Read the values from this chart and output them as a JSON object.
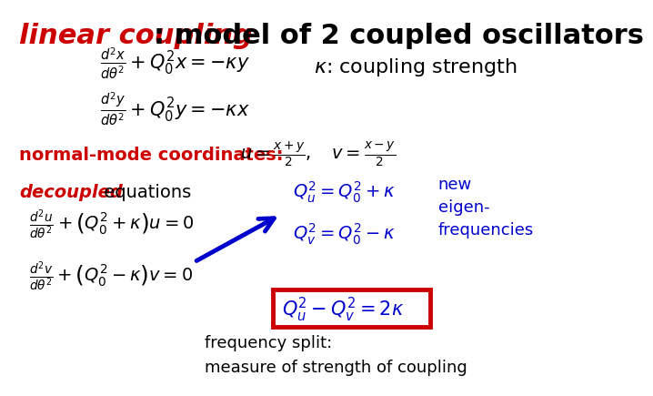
{
  "title_italic": "linear coupling",
  "title_rest": ": model of 2 coupled oscillators",
  "title_color_italic": "#cc0000",
  "title_color_rest": "#000000",
  "title_fontsize": 22,
  "bg_color": "#ffffff",
  "eq1": "$\\frac{d^2x}{d\\theta^2} + Q_0^2 x = -\\kappa y$",
  "eq2": "$\\frac{d^2y}{d\\theta^2} + Q_0^2 y = -\\kappa x$",
  "kappa_label": "$\\kappa$: coupling strength",
  "normal_mode_label": "normal-mode coordinates:",
  "normal_mode_eq": "$u = \\frac{x+y}{2},\\quad v = \\frac{x-y}{2}$",
  "decoupled_label_italic": "decoupled",
  "decoupled_label_rest": " equations",
  "decoupled_color": "#cc0000",
  "eq_u": "$\\frac{d^2u}{d\\theta^2} + \\left(Q_0^2 + \\kappa\\right)u = 0$",
  "eq_v": "$\\frac{d^2v}{d\\theta^2} + \\left(Q_0^2 - \\kappa\\right)v = 0$",
  "eigen_eq1": "$Q_u^2 = Q_0^2 + \\kappa$",
  "eigen_eq2": "$Q_v^2 = Q_0^2 - \\kappa$",
  "eigen_label": "new\neigen-\nfrequencies",
  "eigen_color": "#0000cc",
  "boxed_eq": "$Q_u^2 - Q_v^2 = 2\\kappa$",
  "box_color": "#cc0000",
  "freq_split": "frequency split:\nmeasure of strength of coupling",
  "arrow_color": "#0000cc"
}
